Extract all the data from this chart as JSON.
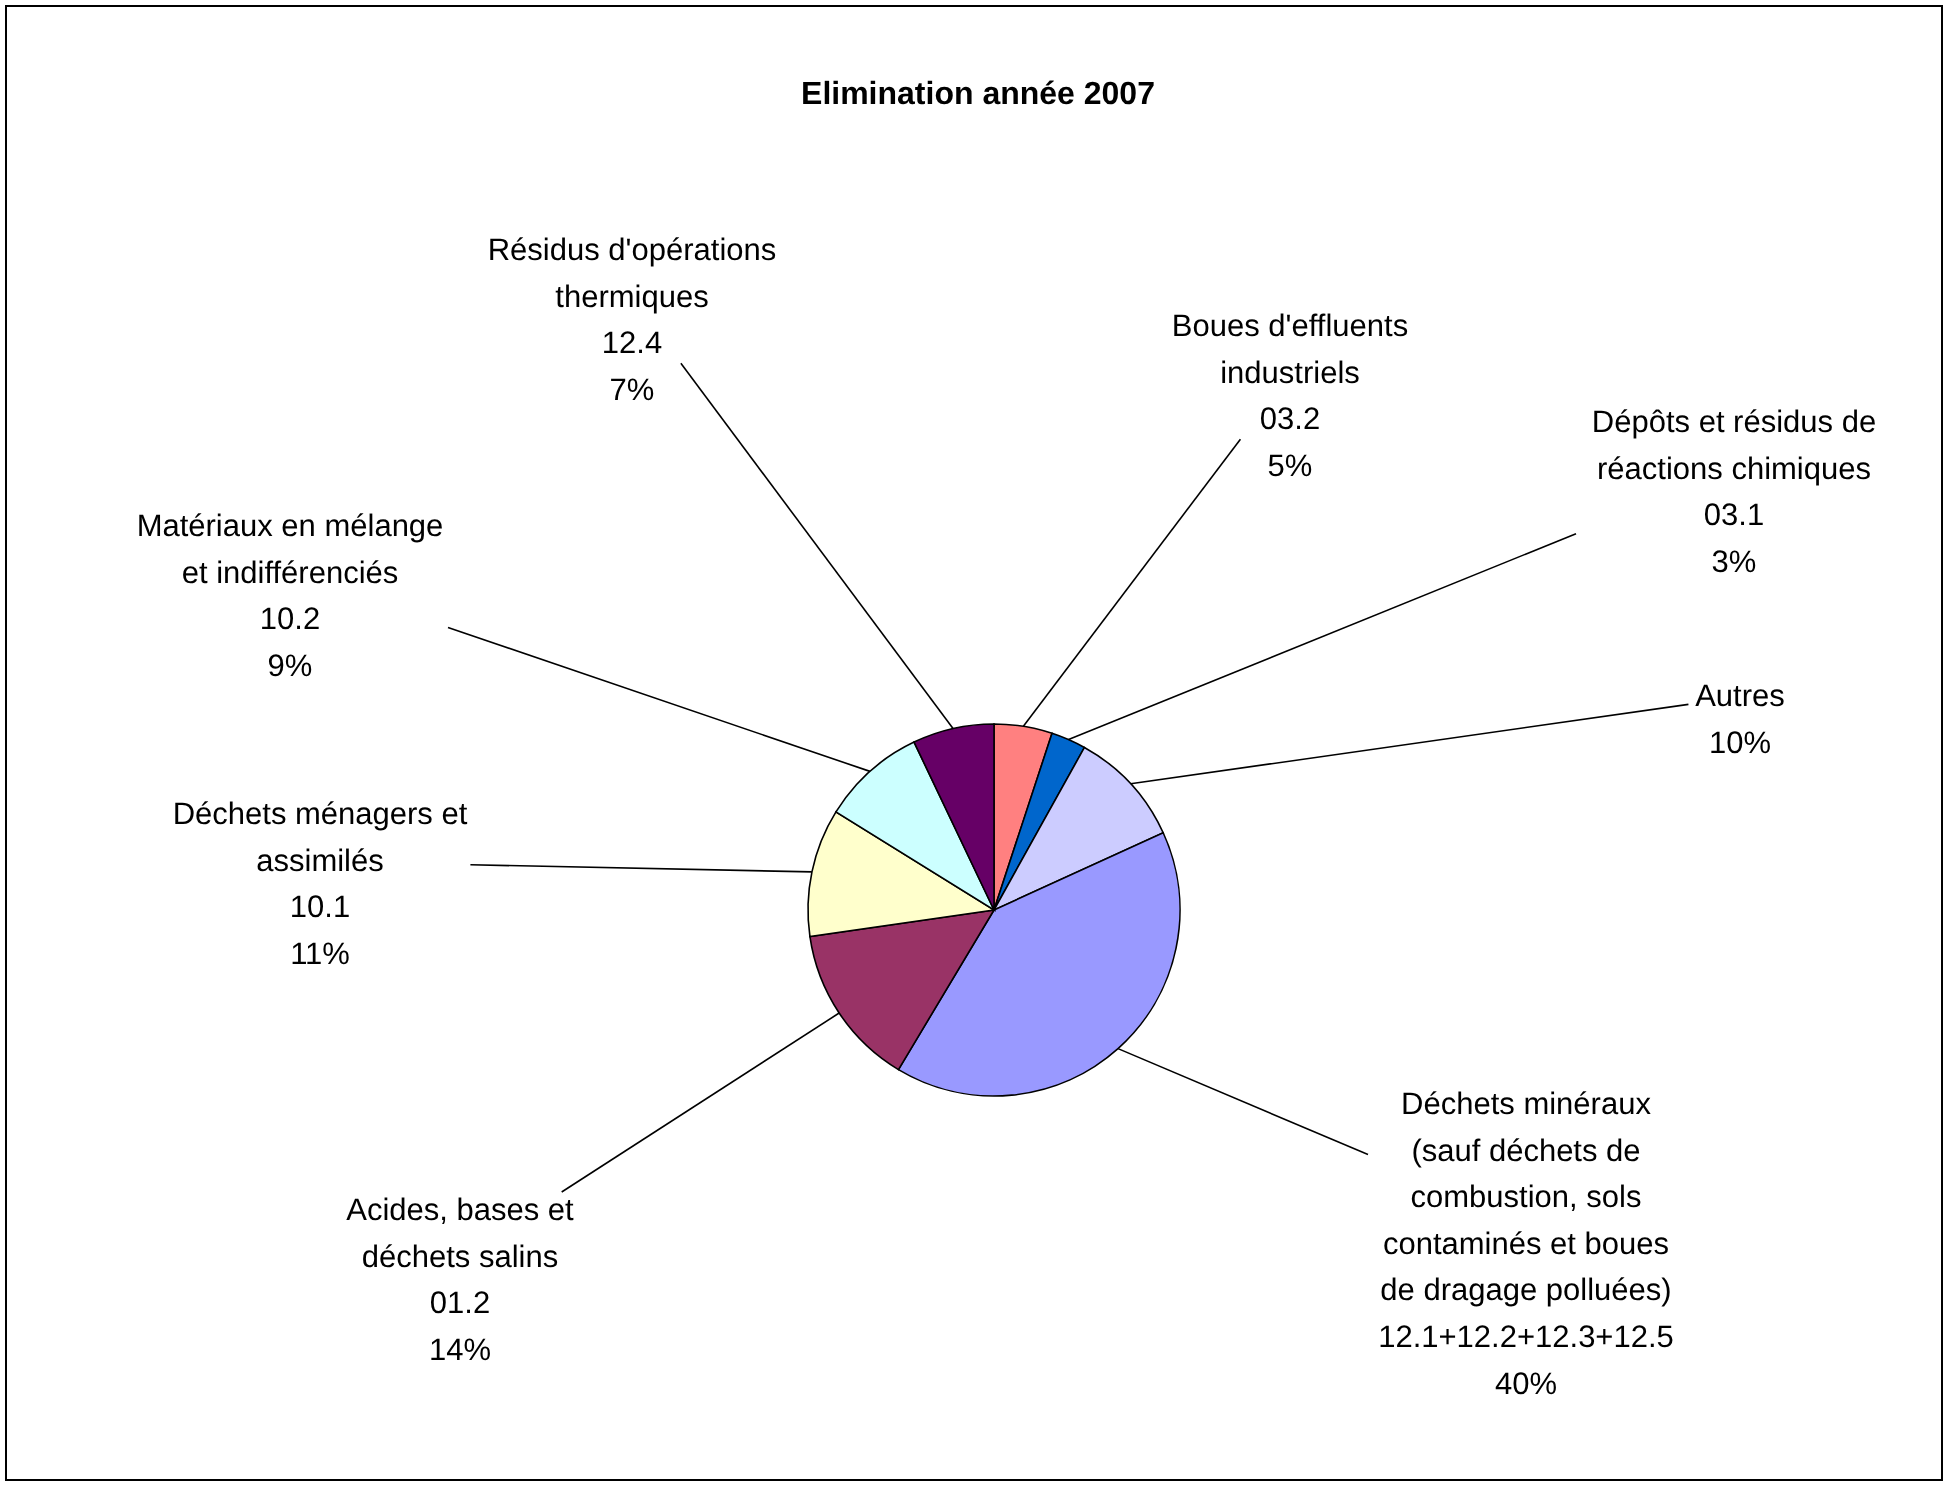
{
  "chart_data": {
    "type": "pie",
    "title": "Elimination année 2007",
    "categories": [
      "Boues d'effluents\nindustriels\n03.2",
      "Dépôts et résidus de\nréactions chimiques\n03.1",
      "Autres",
      "Déchets minéraux\n(sauf déchets de\ncombustion, sols\ncontaminés et boues\nde dragage polluées)\n12.1+12.2+12.3+12.5",
      "Acides, bases et\ndéchets salins\n01.2",
      "Déchets ménagers et\nassimilés\n10.1",
      "Matériaux en mélange\net indifférenciés\n10.2",
      "Résidus d'opérations\nthermiques\n12.4"
    ],
    "values": [
      5,
      3,
      10,
      40,
      14,
      11,
      9,
      7
    ],
    "colors": [
      "#ff8080",
      "#0066cc",
      "#ccccff",
      "#9999ff",
      "#993366",
      "#ffffcc",
      "#ccffff",
      "#660066"
    ],
    "value_labels": [
      "5%",
      "3%",
      "10%",
      "40%",
      "14%",
      "11%",
      "9%",
      "7%"
    ]
  }
}
